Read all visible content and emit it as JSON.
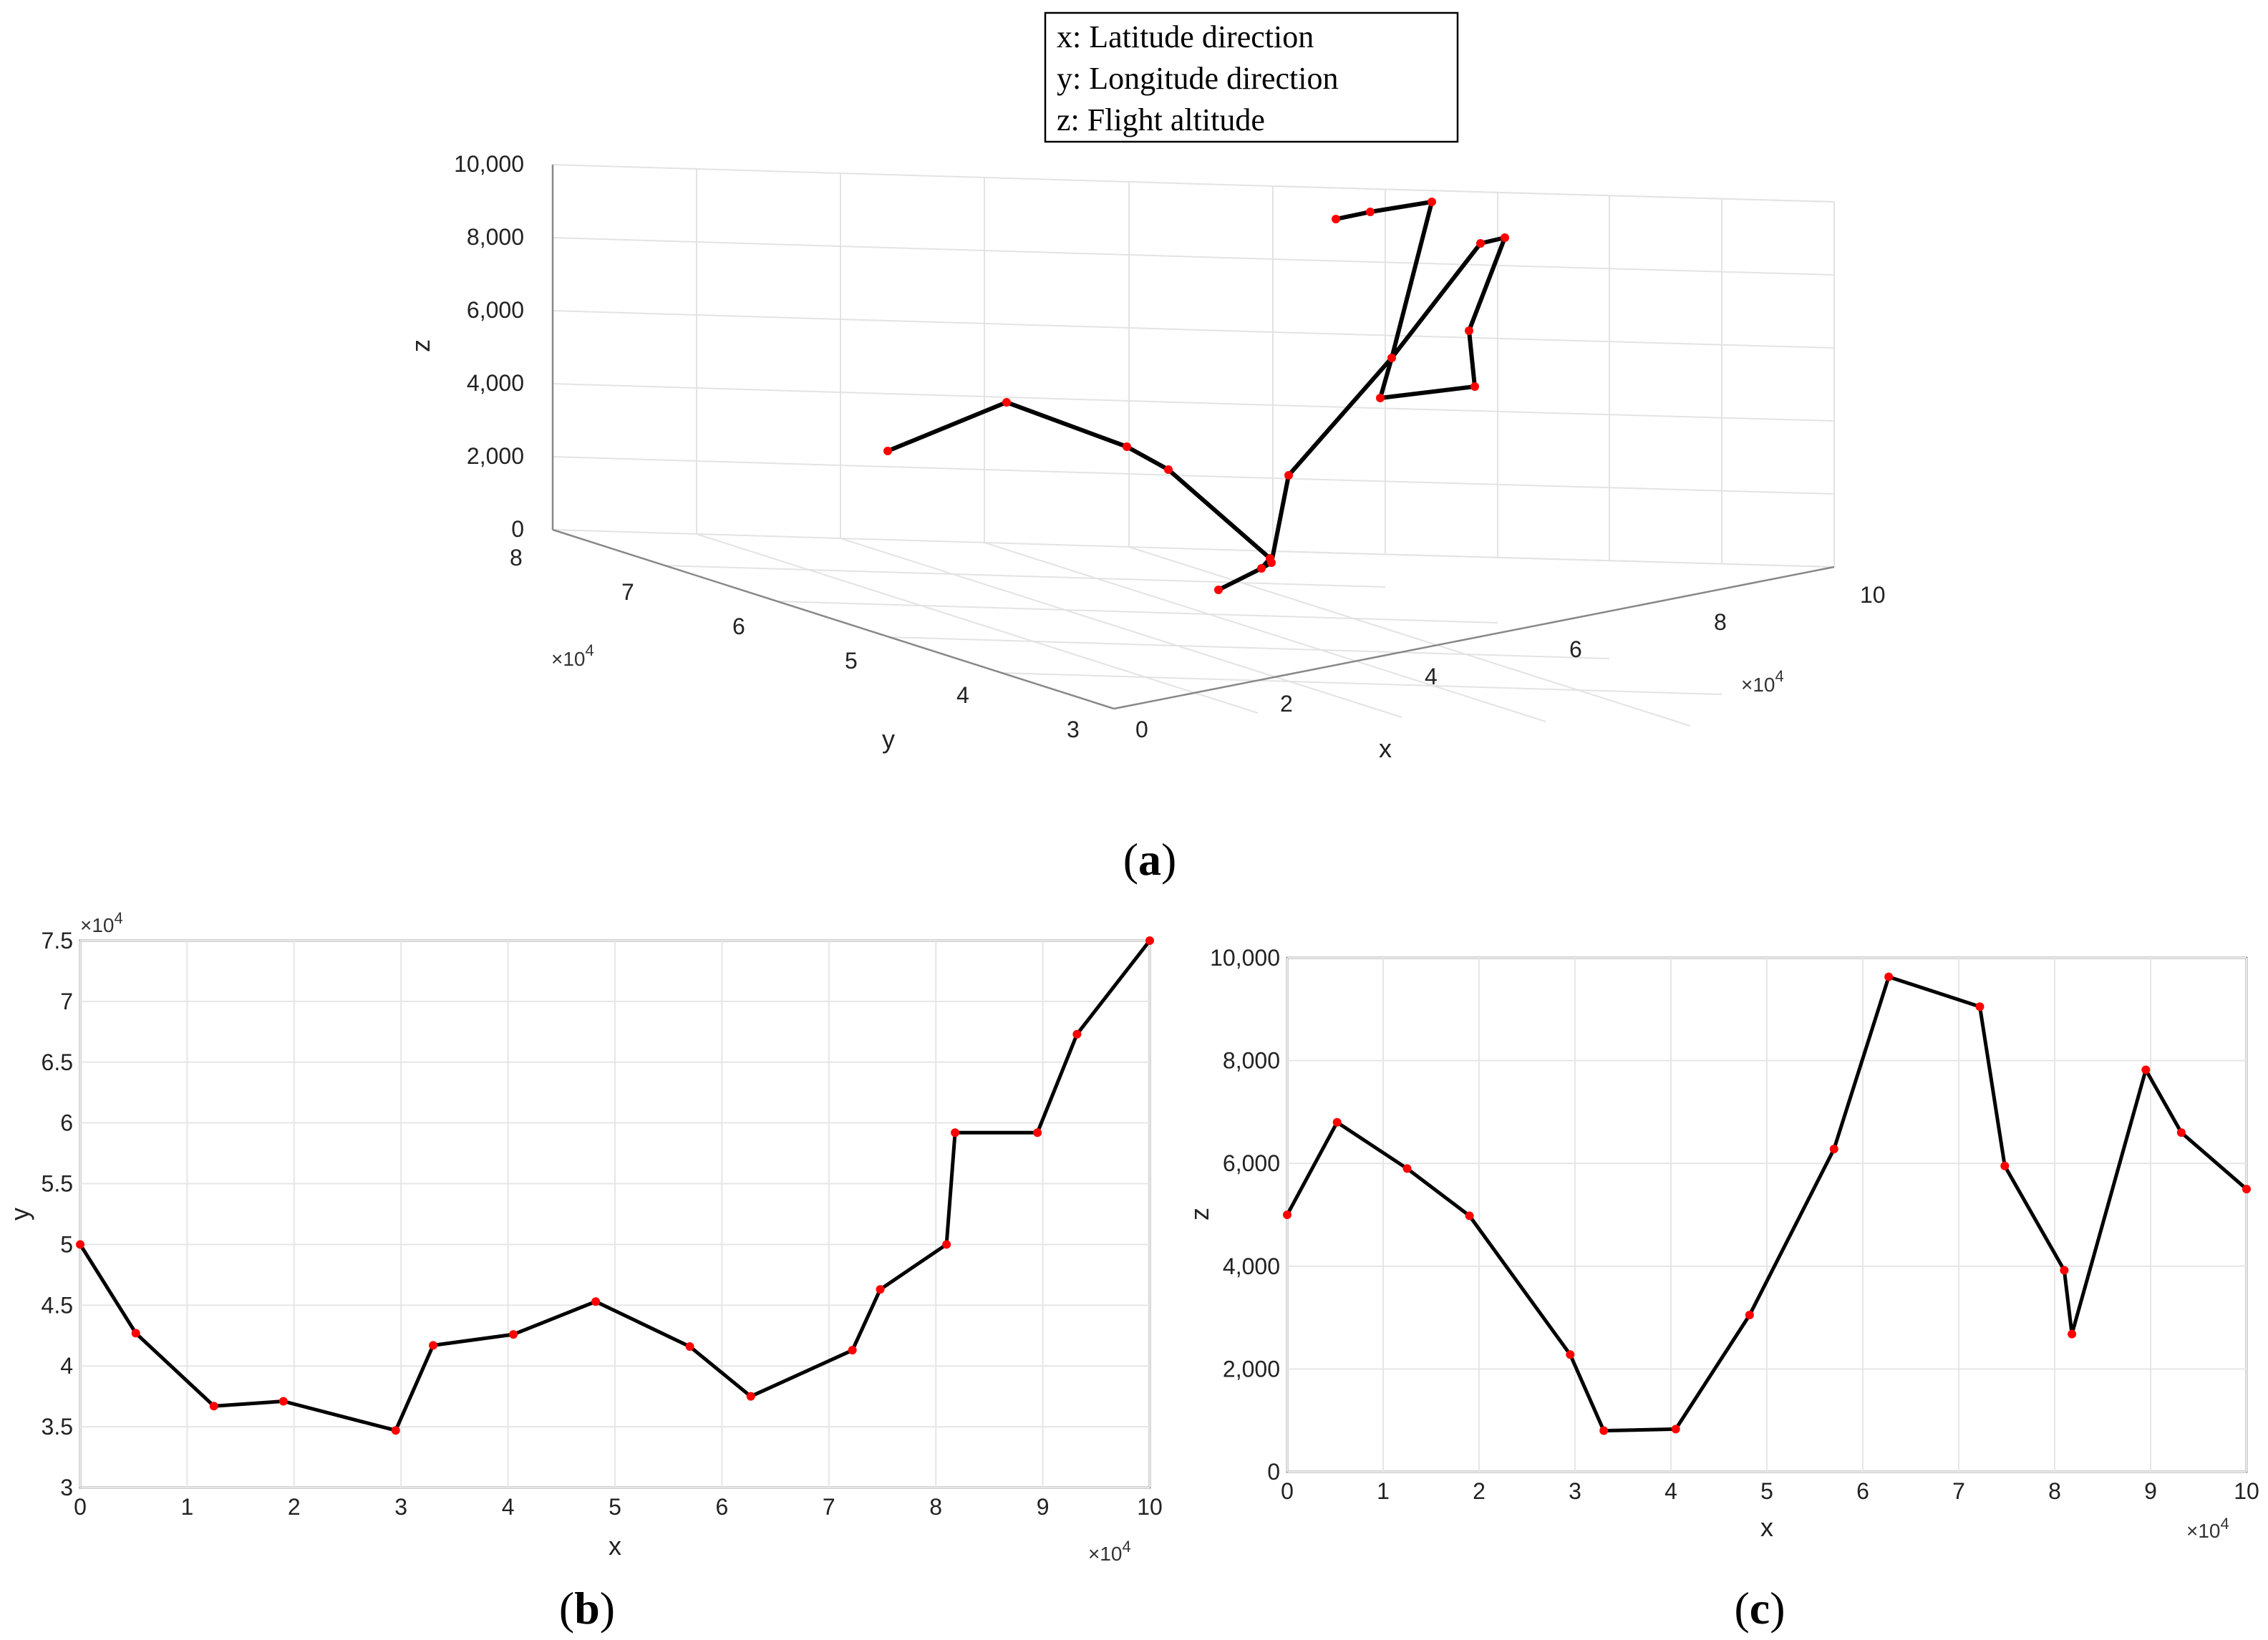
{
  "panel_labels": {
    "a": "a",
    "b": "b",
    "c": "c"
  },
  "chart_data": [
    {
      "type": "line",
      "subtype": "3d",
      "panel": "a",
      "legend_entries": [
        "x: Latitude direction",
        "y: Longitude direction",
        "z: Flight altitude"
      ],
      "legend_placement": "top-center",
      "xlabel": "x",
      "ylabel": "y",
      "zlabel": "z",
      "x_exponent": "×10^4",
      "y_exponent": "×10^4",
      "xlim": [
        0,
        100000
      ],
      "ylim": [
        30000,
        80000
      ],
      "zlim": [
        0,
        10000
      ],
      "x_ticks": [
        "0",
        "2",
        "4",
        "6",
        "8",
        "10"
      ],
      "y_ticks": [
        "3",
        "4",
        "5",
        "6",
        "7",
        "8"
      ],
      "z_ticks": [
        "0",
        "2,000",
        "4,000",
        "6,000",
        "8,000",
        "10,000"
      ],
      "grid": true,
      "line_color": "#000000",
      "marker_color": "#ff0000"
    },
    {
      "type": "line",
      "panel": "b",
      "xlabel": "x",
      "ylabel": "y",
      "x_exponent": "×10^4",
      "y_exponent": "×10^4",
      "xlim": [
        0,
        10
      ],
      "ylim": [
        3,
        7.5
      ],
      "x_ticks": [
        "0",
        "1",
        "2",
        "3",
        "4",
        "5",
        "6",
        "7",
        "8",
        "9",
        "10"
      ],
      "y_ticks": [
        "3",
        "3.5",
        "4",
        "4.5",
        "5",
        "5.5",
        "6",
        "6.5",
        "7",
        "7.5"
      ],
      "grid": true,
      "line_color": "#000000",
      "marker_color": "#ff0000",
      "x": [
        0,
        0.52,
        1.25,
        1.9,
        2.95,
        3.3,
        4.05,
        4.82,
        5.7,
        6.27,
        7.22,
        7.48,
        8.1,
        8.18,
        8.95,
        9.32,
        10
      ],
      "y": [
        5.0,
        4.27,
        3.67,
        3.71,
        3.47,
        4.17,
        4.26,
        4.53,
        4.16,
        3.75,
        4.13,
        4.63,
        5.0,
        5.92,
        5.92,
        6.73,
        7.5
      ]
    },
    {
      "type": "line",
      "panel": "c",
      "xlabel": "x",
      "ylabel": "z",
      "x_exponent": "×10^4",
      "xlim": [
        0,
        10
      ],
      "ylim": [
        0,
        10000
      ],
      "x_ticks": [
        "0",
        "1",
        "2",
        "3",
        "4",
        "5",
        "6",
        "7",
        "8",
        "9",
        "10"
      ],
      "y_ticks": [
        "0",
        "2,000",
        "4,000",
        "6,000",
        "8,000",
        "10,000"
      ],
      "grid": true,
      "line_color": "#000000",
      "marker_color": "#ff0000",
      "x": [
        0,
        0.52,
        1.25,
        1.9,
        2.95,
        3.3,
        4.05,
        4.82,
        5.7,
        6.27,
        7.22,
        7.48,
        8.1,
        8.18,
        8.95,
        9.32,
        10
      ],
      "y": [
        5000,
        6800,
        5900,
        4980,
        2280,
        800,
        830,
        3050,
        6280,
        9630,
        9050,
        5950,
        3920,
        2680,
        7820,
        6600,
        5500
      ]
    }
  ]
}
